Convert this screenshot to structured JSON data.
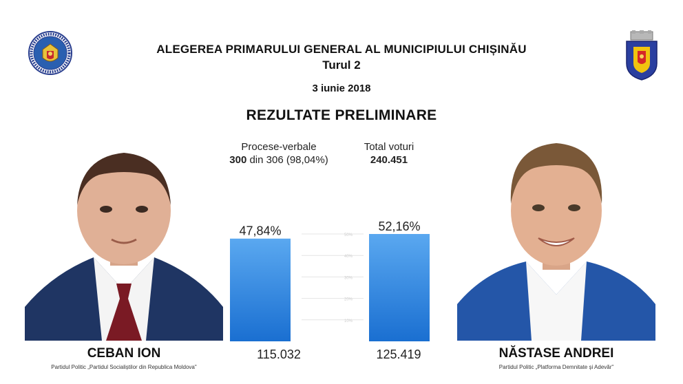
{
  "header": {
    "title": "ALEGEREA PRIMARULUI GENERAL AL MUNICIPIULUI CHIȘINĂU",
    "round": "Turul 2",
    "date": "3 iunie 2018",
    "subtitle": "REZULTATE PRELIMINARE"
  },
  "stats": {
    "protocols_label": "Procese-verbale",
    "protocols_count": "300",
    "protocols_rest": "din 306 (98,04%)",
    "votes_label": "Total voturi",
    "votes_value": "240.451"
  },
  "candidates": [
    {
      "name": "CEBAN ION",
      "party": "Partidul Politic „Partidul Socialiștilor din Republica Moldova\"",
      "votes": "115.032"
    },
    {
      "name": "NĂSTASE ANDREI",
      "party": "Partidul Politic „Platforma Demnitate și Adevăr\"",
      "votes": "125.419"
    }
  ],
  "chart_data": {
    "type": "bar",
    "categories": [
      "CEBAN ION",
      "NĂSTASE ANDREI"
    ],
    "values": [
      47.84,
      52.16
    ],
    "value_labels": [
      "47,84%",
      "52,16%"
    ],
    "ylim": [
      0,
      50
    ],
    "gridlines": [
      10,
      20,
      30,
      40,
      50
    ],
    "grid_tick_labels": [
      "10%",
      "20%",
      "30%",
      "40%",
      "50%"
    ],
    "bar_color": "#2e86de"
  },
  "colors": {
    "bar_top": "#5aa8f0",
    "bar_bottom": "#1a6fd1",
    "suit_left": "#1f3563",
    "suit_right": "#2456a8"
  }
}
